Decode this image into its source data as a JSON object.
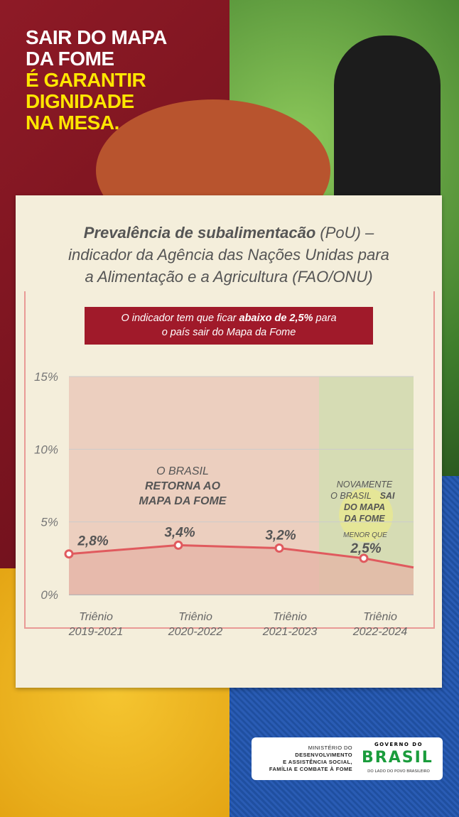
{
  "headline": {
    "line1": "SAIR DO MAPA",
    "line2": "DA FOME",
    "line3": "É GARANTIR",
    "line4": "DIGNIDADE",
    "line5": "NA MESA."
  },
  "title": {
    "bold": "Prevalência de subalimentacão",
    "rest1": " (PoU) –",
    "line2": "indicador da Agência das Nações Unidas para",
    "line3": "a Alimentação e a Agricultura (FAO/ONU)"
  },
  "banner": {
    "pre": "O indicador tem que ficar ",
    "bold": "abaixo de 2,5%",
    "post": " para",
    "line2": "o país sair do Mapa da Fome"
  },
  "chart_data": {
    "type": "line",
    "ylim": [
      0,
      15
    ],
    "yticks": [
      "0%",
      "5%",
      "10%",
      "15%"
    ],
    "categories": [
      "Triênio 2019-2021",
      "Triênio 2020-2022",
      "Triênio 2021-2023",
      "Triênio 2022-2024"
    ],
    "values": [
      2.8,
      3.4,
      3.2,
      2.5
    ],
    "data_labels": [
      "2,8%",
      "3,4%",
      "3,2%",
      "2,5%"
    ],
    "last_label_prefix": "MENOR QUE",
    "grid": true,
    "annotations": {
      "red_zone": [
        "O BRASIL",
        "RETORNA AO",
        "MAPA DA FOME"
      ],
      "green_zone": [
        "NOVAMENTE",
        "O BRASIL",
        "SAI",
        "DO MAPA",
        "DA FOME"
      ]
    },
    "colors": {
      "line": "#e05a5e",
      "red_zone": "#eccfbf",
      "green_zone": "#d6dcb4",
      "fill": "#e6b0a4"
    }
  },
  "footer": {
    "ministry": [
      "MINISTÉRIO DO",
      "DESENVOLVIMENTO",
      "E ASSISTÊNCIA SOCIAL,",
      "FAMÍLIA E COMBATE À FOME"
    ],
    "gov": "GOVERNO DO",
    "brasil": "BRASIL",
    "slogan": "DO LADO DO POVO BRASILEIRO"
  }
}
